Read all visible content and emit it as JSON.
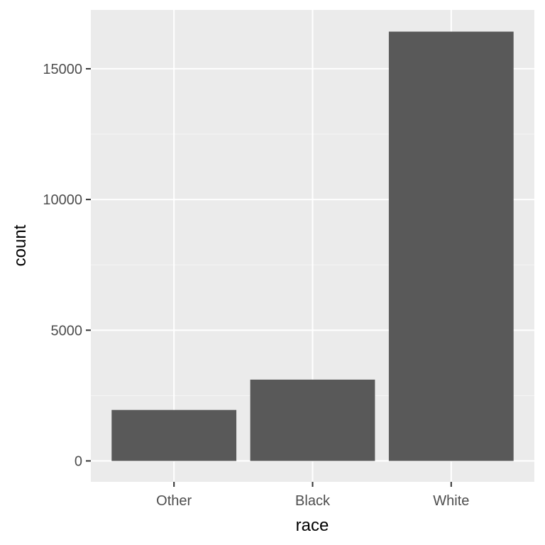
{
  "chart_data": {
    "type": "bar",
    "title": "",
    "xlabel": "race",
    "ylabel": "count",
    "categories": [
      "Other",
      "Black",
      "White"
    ],
    "values": [
      1950,
      3110,
      16420
    ],
    "ylim": [
      -800,
      17250
    ],
    "yticks": [
      0,
      5000,
      10000,
      15000
    ],
    "grid": true,
    "legend": "none",
    "colors": {
      "bar": "#595959",
      "panel": "#EBEBEB",
      "grid_major": "#FFFFFF",
      "grid_minor": "#F5F5F5",
      "tick_label": "#4D4D4D",
      "axis_title": "#000000"
    }
  }
}
